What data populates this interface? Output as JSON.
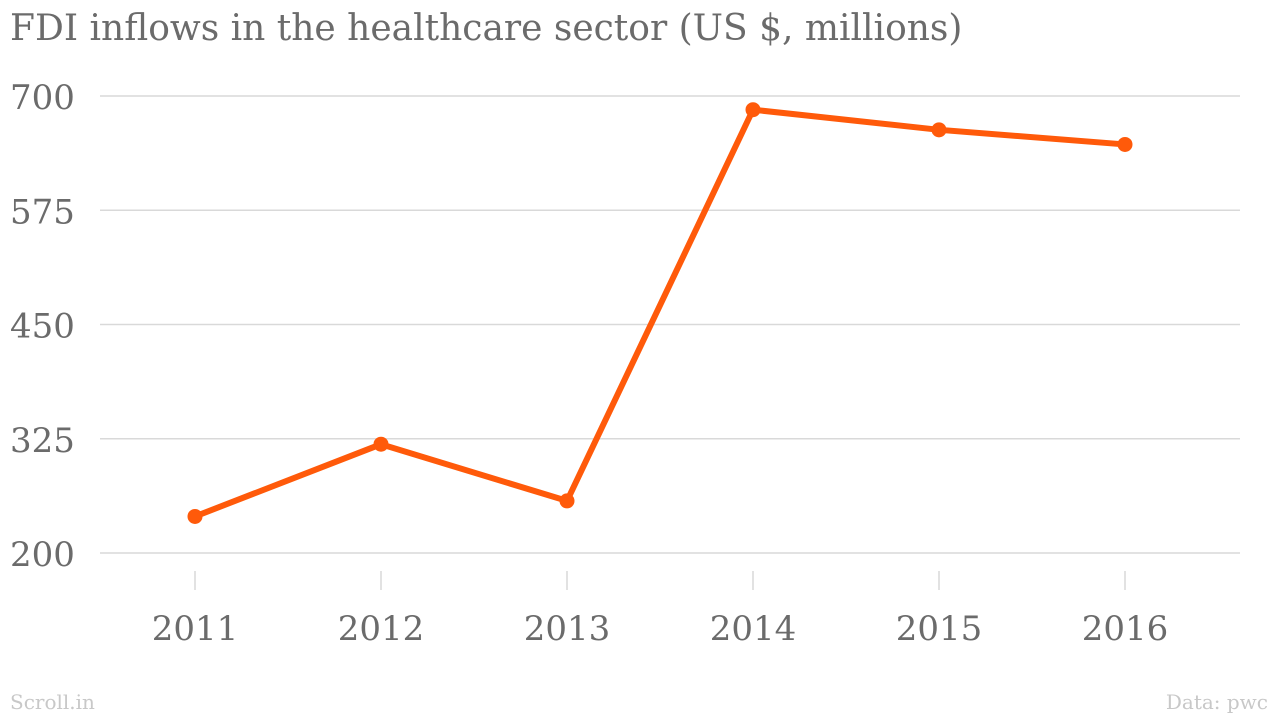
{
  "title": "FDI inflows in the healthcare sector (US $, millions)",
  "footer": {
    "source_brand": "Scroll.in",
    "data_credit": "Data: pwc"
  },
  "colors": {
    "series": "#ff5a0a",
    "grid": "#d9d9d9",
    "text": "#6b6b6b",
    "footer": "#c8c8c8"
  },
  "chart_data": {
    "type": "line",
    "title": "FDI inflows in the healthcare sector (US $, millions)",
    "xlabel": "",
    "ylabel": "",
    "categories": [
      "2011",
      "2012",
      "2013",
      "2014",
      "2015",
      "2016"
    ],
    "series": [
      {
        "values": [
          240,
          319,
          257,
          685,
          663,
          647
        ]
      }
    ],
    "ylim": [
      200,
      700
    ],
    "yticks": [
      200,
      325,
      450,
      575,
      700
    ],
    "grid": true,
    "legend": "none"
  }
}
